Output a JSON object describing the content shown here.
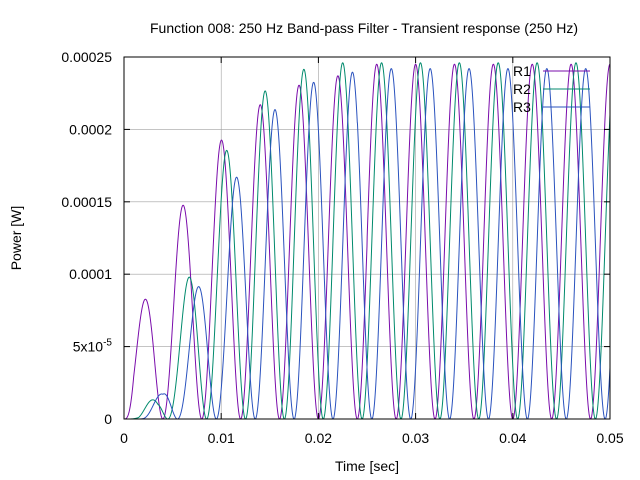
{
  "chart_data": {
    "type": "line",
    "title": "Function 008: 250 Hz Band-pass Filter - Transient response (250 Hz)",
    "xlabel": "Time [sec]",
    "ylabel": "Power [W]",
    "xlim": [
      0,
      0.05
    ],
    "ylim": [
      0,
      0.00025
    ],
    "x_ticks": [
      {
        "value": 0,
        "label": "0"
      },
      {
        "value": 0.01,
        "label": "0.01"
      },
      {
        "value": 0.02,
        "label": "0.02"
      },
      {
        "value": 0.03,
        "label": "0.03"
      },
      {
        "value": 0.04,
        "label": "0.04"
      },
      {
        "value": 0.05,
        "label": "0.05"
      }
    ],
    "y_ticks": [
      {
        "value": 0,
        "label": "0"
      },
      {
        "value": 5e-05,
        "label": "5x10",
        "sup": "-5"
      },
      {
        "value": 0.0001,
        "label": "0.0001"
      },
      {
        "value": 0.00015,
        "label": "0.00015"
      },
      {
        "value": 0.0002,
        "label": "0.0002"
      },
      {
        "value": 0.00025,
        "label": "0.00025"
      }
    ],
    "grid": true,
    "legend_position": "top-right",
    "series": [
      {
        "name": "R1",
        "color": "#7a0cab",
        "phase": 0.0,
        "scale": 0.000245,
        "peaks": [
          {
            "t": 0.001,
            "p": 5.9e-05
          },
          {
            "t": 0.003,
            "p": 0.000102
          },
          {
            "t": 0.005,
            "p": 0.000132
          },
          {
            "t": 0.007,
            "p": 0.000162
          },
          {
            "t": 0.009,
            "p": 0.000185
          },
          {
            "t": 0.011,
            "p": 0.0002
          },
          {
            "t": 0.013,
            "p": 0.000212
          },
          {
            "t": 0.015,
            "p": 0.000222
          },
          {
            "t": 0.017,
            "p": 0.000228
          },
          {
            "t": 0.019,
            "p": 0.000233
          },
          {
            "t": 0.021,
            "p": 0.000236
          },
          {
            "t": 0.023,
            "p": 0.000238
          },
          {
            "t": 0.025,
            "p": 0.000239
          }
        ]
      },
      {
        "name": "R2",
        "color": "#008a6c",
        "phase": 0.0005,
        "scale": 0.000246,
        "peaks": [
          {
            "t": 0.0015,
            "p": 2e-06
          },
          {
            "t": 0.0035,
            "p": 2e-05
          },
          {
            "t": 0.0055,
            "p": 6.8e-05
          },
          {
            "t": 0.0075,
            "p": 0.000122
          },
          {
            "t": 0.0095,
            "p": 0.00017
          },
          {
            "t": 0.0115,
            "p": 0.0002
          },
          {
            "t": 0.0135,
            "p": 0.00022
          },
          {
            "t": 0.0155,
            "p": 0.000233
          },
          {
            "t": 0.0175,
            "p": 0.00024
          },
          {
            "t": 0.0195,
            "p": 0.000243
          },
          {
            "t": 0.0215,
            "p": 0.000245
          }
        ]
      },
      {
        "name": "R3",
        "color": "#2a52be",
        "phase": 0.0015,
        "scale": 0.000242,
        "peaks": [
          {
            "t": 0.002,
            "p": 2e-06
          },
          {
            "t": 0.004,
            "p": 2e-05
          },
          {
            "t": 0.006,
            "p": 5.8e-05
          },
          {
            "t": 0.008,
            "p": 0.0001
          },
          {
            "t": 0.01,
            "p": 0.00014
          },
          {
            "t": 0.012,
            "p": 0.000175
          },
          {
            "t": 0.014,
            "p": 0.0002
          },
          {
            "t": 0.016,
            "p": 0.000218
          },
          {
            "t": 0.018,
            "p": 0.000228
          },
          {
            "t": 0.02,
            "p": 0.000234
          },
          {
            "t": 0.022,
            "p": 0.000238
          },
          {
            "t": 0.024,
            "p": 0.00024
          }
        ]
      }
    ]
  }
}
